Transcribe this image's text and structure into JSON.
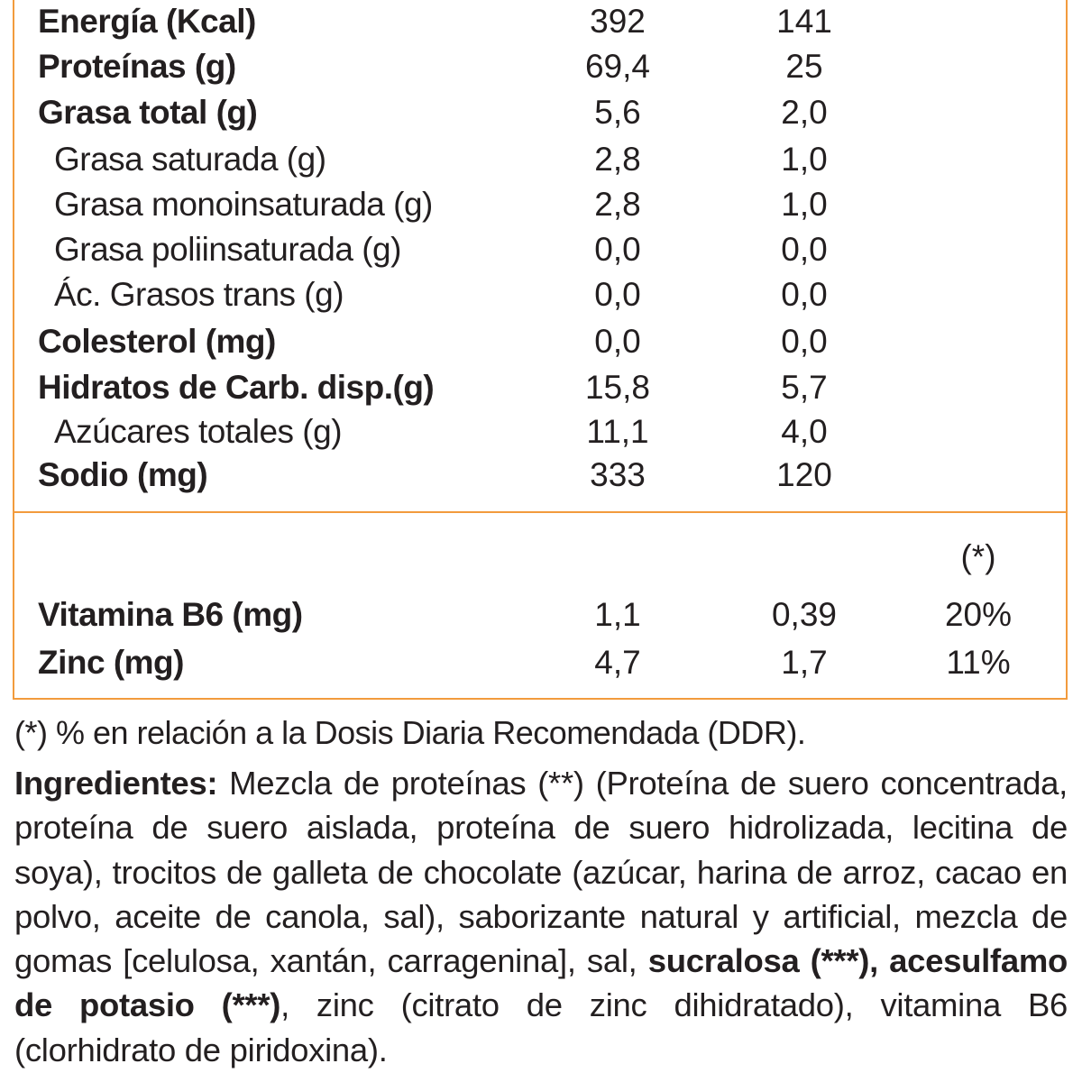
{
  "nutrition": {
    "rows": [
      {
        "label": "Energía (Kcal)",
        "v1": "392",
        "v2": "141",
        "bold": true
      },
      {
        "label": "Proteínas (g)",
        "v1": "69,4",
        "v2": "25",
        "bold": true
      },
      {
        "label": "Grasa total (g)",
        "v1": "5,6",
        "v2": "2,0",
        "bold": true
      },
      {
        "label": "Grasa saturada (g)",
        "v1": "2,8",
        "v2": "1,0",
        "bold": false
      },
      {
        "label": "Grasa monoinsaturada (g)",
        "v1": "2,8",
        "v2": "1,0",
        "bold": false
      },
      {
        "label": "Grasa poliinsaturada (g)",
        "v1": "0,0",
        "v2": "0,0",
        "bold": false
      },
      {
        "label": "Ác. Grasos trans (g)",
        "v1": "0,0",
        "v2": "0,0",
        "bold": false
      },
      {
        "label": "Colesterol (mg)",
        "v1": "0,0",
        "v2": "0,0",
        "bold": true
      },
      {
        "label": "Hidratos de Carb. disp.(g)",
        "v1": "15,8",
        "v2": "5,7",
        "bold": true
      },
      {
        "label": "Azúcares totales (g)",
        "v1": "11,1",
        "v2": "4,0",
        "bold": false
      },
      {
        "label": "Sodio (mg)",
        "v1": "333",
        "v2": "120",
        "bold": true
      }
    ]
  },
  "micronutrients": {
    "ddr_header": "(*)",
    "rows": [
      {
        "label": "Vitamina B6 (mg)",
        "v1": "1,1",
        "v2": "0,39",
        "v3": "20%"
      },
      {
        "label": "Zinc (mg)",
        "v1": "4,7",
        "v2": "1,7",
        "v3": "11%"
      }
    ]
  },
  "footnote": "(*) % en relación a la Dosis Diaria Recomendada (DDR).",
  "ingredients": {
    "heading": "Ingredientes:",
    "part1": " Mezcla de proteínas (**) (Proteína de suero concentrada, proteína de suero aislada, proteína de suero hidrolizada, lecitina de soya), trocitos de galleta de chocolate (azúcar, harina de arroz, cacao en polvo, aceite de canola, sal), saborizante natural y artificial, mezcla de gomas [celulosa, xantán, carragenina], sal, ",
    "bold_part": "sucralosa (***), acesulfamo de potasio (***)",
    "part2": ", zinc (citrato de zinc dihidratado), vitamina B6 (clorhidrato de piridoxina)."
  },
  "colors": {
    "border": "#f29b3d",
    "text": "#231f20"
  }
}
